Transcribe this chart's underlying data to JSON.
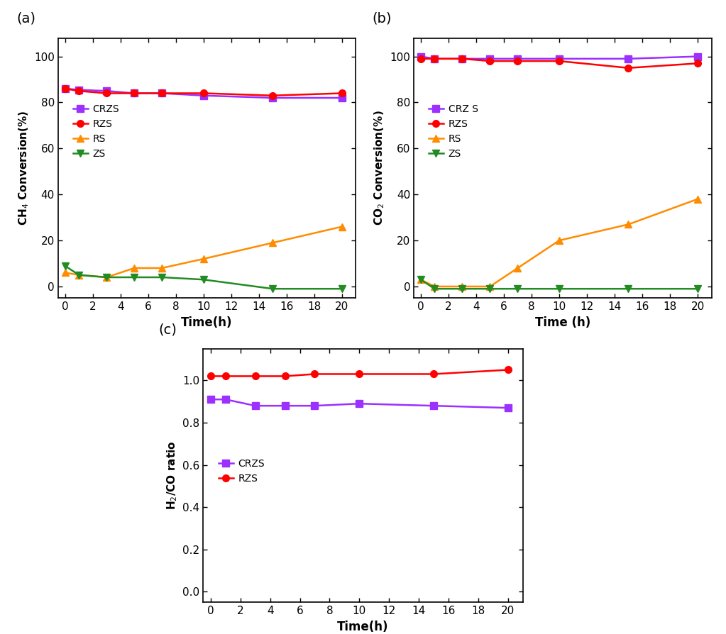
{
  "time_ab": [
    0,
    1,
    3,
    5,
    7,
    10,
    15,
    20
  ],
  "time_c": [
    0,
    1,
    3,
    5,
    7,
    10,
    15,
    20
  ],
  "ch4_CRZS": [
    86,
    85.5,
    85,
    84,
    84,
    83,
    82,
    82
  ],
  "ch4_RZS": [
    86,
    85,
    84,
    84,
    84,
    84,
    83,
    84
  ],
  "ch4_RS": [
    6,
    5,
    4,
    8,
    8,
    12,
    19,
    26
  ],
  "ch4_ZS": [
    9,
    5,
    4,
    4,
    4,
    3,
    -1,
    -1
  ],
  "co2_CRZS": [
    100,
    99,
    99,
    99,
    99,
    99,
    99,
    100
  ],
  "co2_RZS": [
    99,
    99,
    99,
    98,
    98,
    98,
    95,
    97
  ],
  "co2_RS": [
    3,
    0,
    0,
    0,
    8,
    20,
    27,
    38
  ],
  "co2_ZS": [
    3,
    -1,
    -1,
    -1,
    -1,
    -1,
    -1,
    -1
  ],
  "h2co_CRZS": [
    0.91,
    0.91,
    0.88,
    0.88,
    0.88,
    0.89,
    0.88,
    0.87
  ],
  "h2co_RZS": [
    1.02,
    1.02,
    1.02,
    1.02,
    1.03,
    1.03,
    1.03,
    1.05
  ],
  "color_CRZS": "#9B30FF",
  "color_RZS": "#FF0000",
  "color_RS": "#FF8C00",
  "color_ZS": "#228B22",
  "marker_CRZS": "s",
  "marker_RZS": "o",
  "marker_RS": "^",
  "marker_ZS": "v",
  "xlabel_a": "Time(h)",
  "xlabel_b": "Time (h)",
  "xlabel_c": "Time(h)",
  "ylabel_a": "CH$_4$ Conversion(%)",
  "ylabel_b": "CO$_2$ Conversion(%)",
  "ylabel_c": "H$_2$/CO ratio",
  "label_a": "(a)",
  "label_b": "(b)",
  "label_c": "(c)",
  "ylim_a": [
    -5,
    108
  ],
  "ylim_b": [
    -5,
    108
  ],
  "ylim_c": [
    -0.05,
    1.15
  ],
  "yticks_a": [
    0,
    20,
    40,
    60,
    80,
    100
  ],
  "yticks_b": [
    0,
    20,
    40,
    60,
    80,
    100
  ],
  "yticks_c": [
    0.0,
    0.2,
    0.4,
    0.6,
    0.8,
    1.0
  ],
  "xticks": [
    0,
    2,
    4,
    6,
    8,
    10,
    12,
    14,
    16,
    18,
    20
  ],
  "background": "#FFFFFF",
  "linewidth": 1.8,
  "markersize": 7
}
